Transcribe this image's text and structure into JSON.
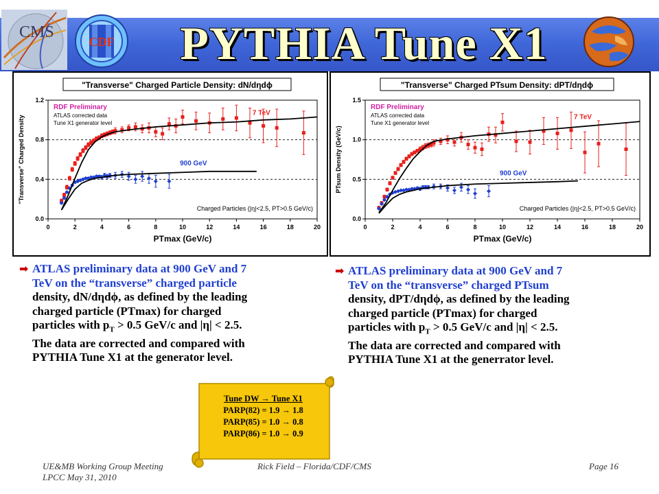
{
  "slide": {
    "title": "PYTHIA Tune X1",
    "logos": {
      "cms": "CMS",
      "cdf": "CDF"
    }
  },
  "charts": [
    {
      "title": "\"Transverse\" Charged Particle Density: dN/dηdϕ",
      "ylabel": "\"Transverse\" Charged Density",
      "xlabel": "PTmax (GeV/c)",
      "xticks": [
        "0",
        "2",
        "4",
        "6",
        "8",
        "10",
        "12",
        "14",
        "16",
        "18",
        "20"
      ],
      "yticks": [
        "0.0",
        "0.4",
        "0.8",
        "1.2"
      ],
      "legend_lines": [
        "RDF Preliminary",
        "ATLAS corrected data",
        "Tune X1 generator level"
      ],
      "label_7tev": "7 TeV",
      "label_900": "900 GeV",
      "cut_label": "Charged Particles (|η|<2.5, PT>0.5 GeV/c)"
    },
    {
      "title": "\"Transverse\" Charged PTsum Density: dPT/dηdϕ",
      "ylabel": "PTsum Density (GeV/c)",
      "xlabel": "PTmax (GeV/c)",
      "xticks": [
        "0",
        "2",
        "4",
        "6",
        "8",
        "10",
        "12",
        "14",
        "16",
        "18",
        "20"
      ],
      "yticks": [
        "0.0",
        "0.5",
        "1.0",
        "1.5"
      ],
      "legend_lines": [
        "RDF Preliminary",
        "ATLAS corrected data",
        "Tune X1 generator level"
      ],
      "label_7tev": "7 TeV",
      "label_900": "900 GeV",
      "cut_label": "Charged Particles (|η|<2.5, PT>0.5 GeV/c)"
    }
  ],
  "chart_data": [
    {
      "type": "scatter",
      "title": "\"Transverse\" Charged Particle Density: dN/dηdϕ",
      "xlabel": "PTmax (GeV/c)",
      "ylabel": "\"Transverse\" Charged Density",
      "xlim": [
        0,
        20
      ],
      "ylim": [
        0,
        1.2
      ],
      "grid_y": [
        0.4,
        0.8
      ],
      "series": [
        {
          "name": "7 TeV",
          "color": "#e8201c",
          "marker": "square",
          "x": [
            1.0,
            1.2,
            1.4,
            1.6,
            1.8,
            2.0,
            2.2,
            2.4,
            2.6,
            2.8,
            3.0,
            3.2,
            3.4,
            3.6,
            3.8,
            4.0,
            4.2,
            4.4,
            4.6,
            4.8,
            5.0,
            5.5,
            6.0,
            6.5,
            7.0,
            7.5,
            8.0,
            8.5,
            9.0,
            9.5,
            10.0,
            11.0,
            12.0,
            13.0,
            14.0,
            15.0,
            16.0,
            17.0,
            19.0
          ],
          "y": [
            0.18,
            0.24,
            0.32,
            0.41,
            0.5,
            0.56,
            0.61,
            0.65,
            0.69,
            0.72,
            0.75,
            0.77,
            0.79,
            0.81,
            0.82,
            0.84,
            0.85,
            0.86,
            0.87,
            0.88,
            0.89,
            0.9,
            0.92,
            0.93,
            0.91,
            0.92,
            0.88,
            0.86,
            0.96,
            0.94,
            1.03,
            0.99,
            0.97,
            1.01,
            1.02,
            0.97,
            0.94,
            0.92,
            0.87
          ],
          "err": [
            0.02,
            0.02,
            0.02,
            0.02,
            0.02,
            0.02,
            0.02,
            0.02,
            0.02,
            0.02,
            0.02,
            0.02,
            0.02,
            0.02,
            0.02,
            0.02,
            0.02,
            0.02,
            0.02,
            0.02,
            0.03,
            0.03,
            0.03,
            0.04,
            0.04,
            0.05,
            0.05,
            0.06,
            0.06,
            0.07,
            0.07,
            0.09,
            0.1,
            0.11,
            0.13,
            0.15,
            0.17,
            0.19,
            0.22
          ]
        },
        {
          "name": "900 GeV",
          "color": "#1f3fd0",
          "marker": "diamond",
          "x": [
            1.0,
            1.2,
            1.4,
            1.6,
            1.8,
            2.0,
            2.2,
            2.4,
            2.6,
            2.8,
            3.0,
            3.2,
            3.4,
            3.6,
            3.8,
            4.0,
            4.2,
            4.4,
            4.6,
            5.0,
            5.5,
            6.0,
            6.5,
            7.0,
            7.5,
            8.0,
            9.0
          ],
          "y": [
            0.16,
            0.21,
            0.27,
            0.31,
            0.34,
            0.37,
            0.38,
            0.39,
            0.4,
            0.41,
            0.41,
            0.42,
            0.42,
            0.43,
            0.43,
            0.42,
            0.44,
            0.43,
            0.44,
            0.44,
            0.45,
            0.43,
            0.4,
            0.43,
            0.41,
            0.38,
            0.38
          ],
          "err": [
            0.01,
            0.01,
            0.01,
            0.01,
            0.01,
            0.01,
            0.01,
            0.01,
            0.01,
            0.01,
            0.01,
            0.01,
            0.01,
            0.01,
            0.01,
            0.02,
            0.02,
            0.02,
            0.02,
            0.03,
            0.03,
            0.04,
            0.04,
            0.05,
            0.05,
            0.06,
            0.07
          ]
        },
        {
          "name": "Tune X1 7 TeV",
          "color": "#000000",
          "type": "line",
          "x": [
            1.0,
            1.5,
            2.0,
            2.5,
            3.0,
            3.5,
            4.0,
            4.5,
            5.0,
            6.0,
            8.0,
            10.0,
            12.0,
            14.0,
            16.0,
            18.0,
            20.0
          ],
          "y": [
            0.09,
            0.24,
            0.41,
            0.57,
            0.7,
            0.78,
            0.83,
            0.86,
            0.88,
            0.9,
            0.93,
            0.95,
            0.97,
            0.98,
            1.0,
            1.01,
            1.03
          ]
        },
        {
          "name": "Tune X1 900 GeV",
          "color": "#000000",
          "type": "line",
          "x": [
            1.0,
            1.5,
            2.0,
            2.5,
            3.0,
            3.5,
            4.0,
            5.0,
            6.0,
            8.0,
            10.0,
            12.0,
            14.0,
            15.5
          ],
          "y": [
            0.09,
            0.2,
            0.3,
            0.36,
            0.39,
            0.41,
            0.42,
            0.44,
            0.45,
            0.46,
            0.47,
            0.48,
            0.48,
            0.48
          ]
        }
      ]
    },
    {
      "type": "scatter",
      "title": "\"Transverse\" Charged PTsum Density: dPT/dηdϕ",
      "xlabel": "PTmax (GeV/c)",
      "ylabel": "PTsum Density (GeV/c)",
      "xlim": [
        0,
        20
      ],
      "ylim": [
        0,
        1.5
      ],
      "grid_y": [
        0.5,
        1.0
      ],
      "series": [
        {
          "name": "7 TeV",
          "color": "#e8201c",
          "marker": "square",
          "x": [
            1.0,
            1.2,
            1.4,
            1.6,
            1.8,
            2.0,
            2.2,
            2.4,
            2.6,
            2.8,
            3.0,
            3.2,
            3.4,
            3.6,
            3.8,
            4.0,
            4.2,
            4.4,
            4.6,
            4.8,
            5.0,
            5.5,
            6.0,
            6.5,
            7.0,
            7.5,
            8.0,
            8.5,
            9.0,
            9.5,
            10.0,
            11.0,
            12.0,
            13.0,
            14.0,
            15.0,
            16.0,
            17.0,
            19.0
          ],
          "y": [
            0.14,
            0.2,
            0.28,
            0.37,
            0.45,
            0.52,
            0.58,
            0.63,
            0.68,
            0.72,
            0.76,
            0.79,
            0.82,
            0.84,
            0.86,
            0.88,
            0.9,
            0.92,
            0.93,
            0.94,
            0.96,
            0.98,
            1.0,
            0.97,
            1.03,
            0.94,
            0.9,
            0.88,
            1.07,
            1.06,
            1.22,
            0.98,
            0.97,
            1.11,
            1.08,
            1.12,
            0.84,
            0.95,
            0.88
          ],
          "err": [
            0.02,
            0.02,
            0.02,
            0.02,
            0.02,
            0.02,
            0.02,
            0.02,
            0.02,
            0.02,
            0.02,
            0.02,
            0.02,
            0.02,
            0.02,
            0.03,
            0.03,
            0.03,
            0.03,
            0.03,
            0.04,
            0.04,
            0.05,
            0.05,
            0.06,
            0.06,
            0.07,
            0.08,
            0.09,
            0.1,
            0.11,
            0.13,
            0.15,
            0.17,
            0.2,
            0.23,
            0.26,
            0.29,
            0.33
          ]
        },
        {
          "name": "900 GeV",
          "color": "#1f3fd0",
          "marker": "diamond",
          "x": [
            1.0,
            1.2,
            1.4,
            1.6,
            1.8,
            2.0,
            2.2,
            2.4,
            2.6,
            2.8,
            3.0,
            3.2,
            3.4,
            3.6,
            3.8,
            4.0,
            4.2,
            4.4,
            4.6,
            5.0,
            5.5,
            6.0,
            6.5,
            7.0,
            7.5,
            8.0,
            9.0
          ],
          "y": [
            0.13,
            0.19,
            0.24,
            0.28,
            0.31,
            0.33,
            0.34,
            0.35,
            0.36,
            0.36,
            0.37,
            0.37,
            0.38,
            0.38,
            0.39,
            0.38,
            0.4,
            0.4,
            0.4,
            0.41,
            0.41,
            0.39,
            0.36,
            0.4,
            0.37,
            0.32,
            0.35
          ],
          "err": [
            0.01,
            0.01,
            0.01,
            0.01,
            0.01,
            0.01,
            0.01,
            0.01,
            0.01,
            0.01,
            0.01,
            0.01,
            0.01,
            0.01,
            0.01,
            0.02,
            0.02,
            0.02,
            0.02,
            0.03,
            0.03,
            0.04,
            0.04,
            0.05,
            0.05,
            0.06,
            0.07
          ]
        },
        {
          "name": "Tune X1 7 TeV",
          "color": "#000000",
          "type": "line",
          "x": [
            1.0,
            1.5,
            2.0,
            2.5,
            3.0,
            3.5,
            4.0,
            4.5,
            5.0,
            6.0,
            8.0,
            10.0,
            12.0,
            14.0,
            16.0,
            18.0,
            20.0
          ],
          "y": [
            0.08,
            0.2,
            0.36,
            0.51,
            0.64,
            0.76,
            0.85,
            0.93,
            0.98,
            1.01,
            1.05,
            1.08,
            1.11,
            1.14,
            1.17,
            1.2,
            1.23
          ]
        },
        {
          "name": "Tune X1 900 GeV",
          "color": "#000000",
          "type": "line",
          "x": [
            1.0,
            1.5,
            2.0,
            2.5,
            3.0,
            3.5,
            4.0,
            5.0,
            6.0,
            8.0,
            10.0,
            12.0,
            14.0,
            15.5
          ],
          "y": [
            0.07,
            0.17,
            0.26,
            0.31,
            0.34,
            0.36,
            0.38,
            0.4,
            0.42,
            0.44,
            0.45,
            0.46,
            0.47,
            0.48
          ]
        }
      ]
    }
  ],
  "bullets": {
    "left": {
      "l1_a": "ATLAS preliminary data at 900 GeV and 7",
      "l2_a": "TeV on the “transverse” charged particle",
      "l3_a": "density, dN/dηdϕ, as defined by the leading",
      "l4_a": "charged particle (PTmax) for charged",
      "l5_a": "particles with p",
      "l5_sub": "T",
      "l5_b": " > 0.5 GeV/c and |η| < 2.5.",
      "l6_a": "The data are corrected and compared with",
      "l7_a": "PYTHIA Tune X1 at the generator level."
    },
    "right": {
      "l1_a": "ATLAS preliminary data at 900 GeV and 7",
      "l2_a": "TeV on the “transverse” charged PTsum",
      "l3_a": "density, dPT/dηdϕ, as defined by the leading",
      "l4_a": "charged particle (PTmax) for charged",
      "l5_a": "particles with p",
      "l5_sub": "T",
      "l5_b": " > 0.5 GeV/c and |η| < 2.5.",
      "l6_a": "The data are corrected and compared with",
      "l7_a": "PYTHIA Tune X1 at the generrator level."
    }
  },
  "scroll": {
    "line1": "Tune DW → Tune X1",
    "line2": "PARP(82) = 1.9 → 1.8",
    "line3": "PARP(85) = 1.0 → 0.8",
    "line4": "PARP(86) = 1.0 → 0.9",
    "fill": "#f6c70a"
  },
  "footer": {
    "left1": "UE&MB Working Group Meeting",
    "left2": "LPCC  May 31, 2010",
    "center": "Rick Field – Florida/CDF/CMS",
    "right": "Page 16"
  }
}
